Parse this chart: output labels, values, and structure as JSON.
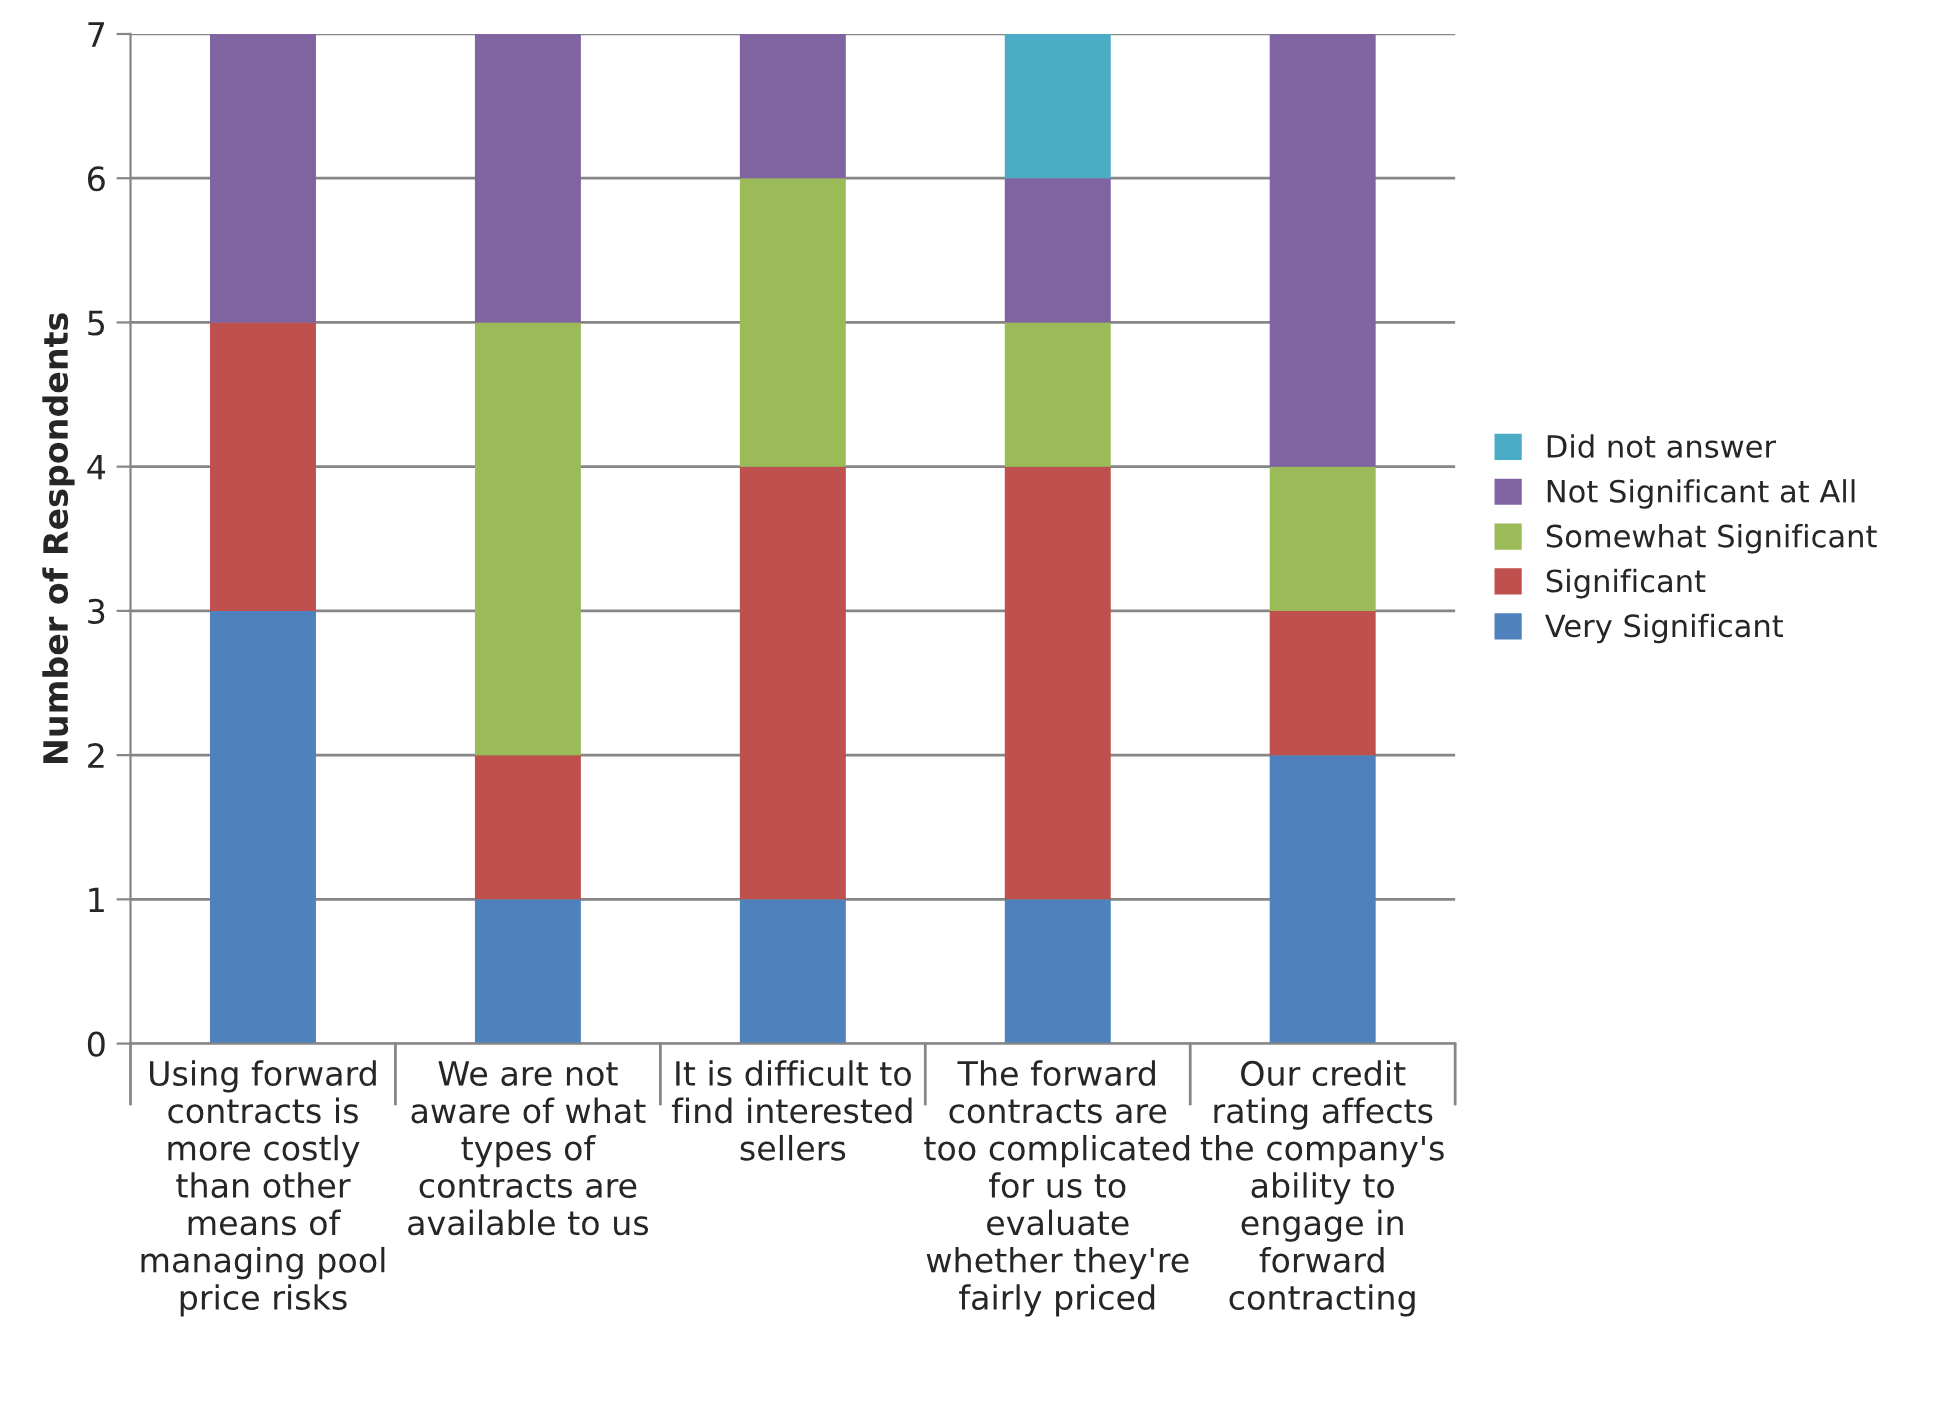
{
  "chart_data": {
    "type": "bar",
    "stacked": true,
    "ylabel": "Number of Respondents",
    "categories": [
      "Using forward\ncontracts is\nmore costly\nthan other\nmeans of\nmanaging pool\nprice risks",
      "We are not\naware of what\ntypes of\ncontracts are\navailable to us",
      "It is difficult to\nfind interested\nsellers",
      "The forward\ncontracts are\ntoo complicated\nfor us to\nevaluate\nwhether they're\nfairly priced",
      "Our credit\nrating affects\nthe company's\nability to\nengage in\nforward\ncontracting"
    ],
    "series": [
      {
        "name": "Very Significant",
        "color": "#4f81bd",
        "values": [
          3,
          1,
          1,
          1,
          2
        ]
      },
      {
        "name": "Significant",
        "color": "#c0504d",
        "values": [
          2,
          1,
          3,
          3,
          1
        ]
      },
      {
        "name": "Somewhat Significant",
        "color": "#9bbb59",
        "values": [
          0,
          3,
          2,
          1,
          1
        ]
      },
      {
        "name": "Not Significant at All",
        "color": "#8064a2",
        "values": [
          2,
          2,
          1,
          1,
          3
        ]
      },
      {
        "name": "Did not answer",
        "color": "#4bacc6",
        "values": [
          0,
          0,
          0,
          1,
          0
        ]
      }
    ],
    "ylim": [
      0,
      7
    ],
    "yticks": [
      0,
      1,
      2,
      3,
      4,
      5,
      6,
      7
    ],
    "grid": "y",
    "legend": "right"
  }
}
